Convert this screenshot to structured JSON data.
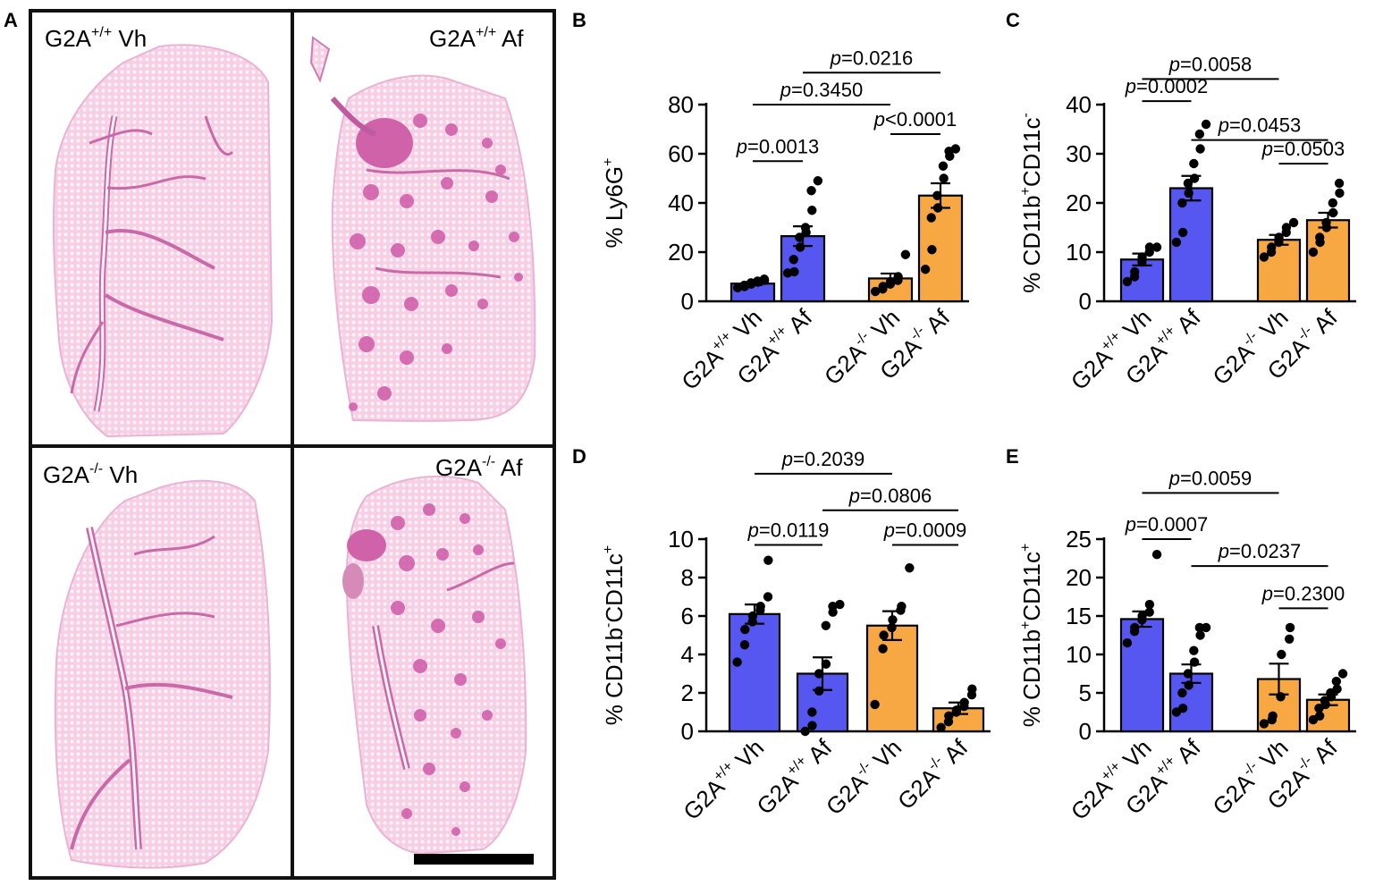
{
  "colors": {
    "blue": "#5656f0",
    "orange": "#f7a842",
    "tissue": "#f3c3df",
    "lesion": "#cf5aa8",
    "airway": "#ad3a8c"
  },
  "panel_a": {
    "letter": "A",
    "images": [
      {
        "base": "G2A",
        "sup": "+/+",
        "rest": " Vh"
      },
      {
        "base": "G2A",
        "sup": "+/+",
        "rest": " Af"
      },
      {
        "base": "G2A",
        "sup": "-/-",
        "rest": " Vh"
      },
      {
        "base": "G2A",
        "sup": "-/-",
        "rest": " Af"
      }
    ]
  },
  "chart_data": [
    {
      "panel": "B",
      "type": "bar",
      "ylabel_parts": [
        {
          "t": "% Ly6G"
        },
        {
          "t": "+",
          "s": "sup"
        }
      ],
      "ylim": [
        0,
        80
      ],
      "ticks": [
        0,
        20,
        40,
        60,
        80
      ],
      "categories": [
        {
          "base": "G2A",
          "sup": "+/+",
          "rest": " Vh"
        },
        {
          "base": "G2A",
          "sup": "+/+",
          "rest": " Af"
        },
        {
          "base": "G2A",
          "sup": "-/-",
          "rest": " Vh"
        },
        {
          "base": "G2A",
          "sup": "-/-",
          "rest": " Af"
        }
      ],
      "means": [
        7.2,
        26.5,
        9.3,
        43.0
      ],
      "sems": [
        0.6,
        4.0,
        2.0,
        5.0
      ],
      "points": [
        [
          5.5,
          6.0,
          6.5,
          7.0,
          7.5,
          7.8,
          8.2,
          8.5,
          9.0
        ],
        [
          11.5,
          12.0,
          17.0,
          22.0,
          26.0,
          28.0,
          30.0,
          37.0,
          45.0,
          49.0
        ],
        [
          4.0,
          5.0,
          6.0,
          7.0,
          8.0,
          8.5,
          10.0,
          19.0
        ],
        [
          13.0,
          21.0,
          34.0,
          38.0,
          43.0,
          50.0,
          55.0,
          59.0,
          61.0,
          62.0
        ]
      ],
      "comparisons": [
        {
          "pair": [
            0,
            1
          ],
          "y": 57,
          "label": "=0.0013"
        },
        {
          "pair": [
            2,
            3
          ],
          "y": 68,
          "label": "<0.0001"
        },
        {
          "pair": [
            0,
            2
          ],
          "y": 80,
          "label": "=0.3450"
        },
        {
          "pair": [
            1,
            3
          ],
          "y": 93,
          "label": "=0.0216"
        }
      ]
    },
    {
      "panel": "C",
      "type": "bar",
      "ylabel_parts": [
        {
          "t": "% CD11b"
        },
        {
          "t": "+",
          "s": "sup"
        },
        {
          "t": "CD11c"
        },
        {
          "t": "-",
          "s": "sup"
        }
      ],
      "ylim": [
        0,
        40
      ],
      "ticks": [
        0,
        10,
        20,
        30,
        40
      ],
      "categories": [
        {
          "base": "G2A",
          "sup": "+/+",
          "rest": " Vh"
        },
        {
          "base": "G2A",
          "sup": "+/+",
          "rest": " Af"
        },
        {
          "base": "G2A",
          "sup": "-/-",
          "rest": " Vh"
        },
        {
          "base": "G2A",
          "sup": "-/-",
          "rest": " Af"
        }
      ],
      "means": [
        8.5,
        23.0,
        12.5,
        16.5
      ],
      "sems": [
        1.2,
        2.5,
        1.0,
        1.5
      ],
      "points": [
        [
          4.0,
          5.0,
          6.0,
          8.0,
          9.0,
          10.0,
          11.0,
          11.0
        ],
        [
          12.0,
          14.0,
          20.0,
          22.0,
          24.0,
          25.0,
          28.0,
          31.0,
          34.0,
          36.0
        ],
        [
          9.0,
          10.0,
          11.0,
          12.0,
          13.0,
          14.0,
          15.0,
          16.0
        ],
        [
          10.0,
          12.0,
          13.0,
          15.0,
          16.0,
          18.0,
          20.0,
          22.0,
          24.0
        ]
      ],
      "comparisons": [
        {
          "pair": [
            2,
            3
          ],
          "y": 28,
          "label": "=0.0503"
        },
        {
          "pair": [
            1,
            3
          ],
          "y": 32.8,
          "label": "=0.0453"
        },
        {
          "pair": [
            0,
            1
          ],
          "y": 40.7,
          "label": "=0.0002"
        },
        {
          "pair": [
            0,
            2
          ],
          "y": 45.2,
          "label": "=0.0058"
        }
      ]
    },
    {
      "panel": "D",
      "type": "bar",
      "ylabel_parts": [
        {
          "t": "% CD11b"
        },
        {
          "t": "-",
          "s": "sup"
        },
        {
          "t": "CD11c"
        },
        {
          "t": "+",
          "s": "sup"
        }
      ],
      "ylim": [
        0,
        10
      ],
      "ticks": [
        0,
        2,
        4,
        6,
        8,
        10
      ],
      "categories": [
        {
          "base": "G2A",
          "sup": "+/+",
          "rest": " Vh"
        },
        {
          "base": "G2A",
          "sup": "+/+",
          "rest": " Af"
        },
        {
          "base": "G2A",
          "sup": "-/-",
          "rest": " Vh"
        },
        {
          "base": "G2A",
          "sup": "-/-",
          "rest": " Af"
        }
      ],
      "means": [
        6.1,
        3.0,
        5.5,
        1.2
      ],
      "sems": [
        0.5,
        0.85,
        0.75,
        0.3
      ],
      "points": [
        [
          3.6,
          4.5,
          5.3,
          5.7,
          6.0,
          6.3,
          6.5,
          7.0,
          8.9
        ],
        [
          0.0,
          0.3,
          1.0,
          2.1,
          3.0,
          3.5,
          5.5,
          6.2,
          6.5,
          6.6
        ],
        [
          1.4,
          4.3,
          5.0,
          5.4,
          5.8,
          6.3,
          6.5,
          8.5
        ],
        [
          0.2,
          0.5,
          0.8,
          1.0,
          1.1,
          1.3,
          1.5,
          1.9,
          2.2
        ]
      ],
      "comparisons": [
        {
          "pair": [
            0,
            1
          ],
          "y": 9.7,
          "label": "=0.0119"
        },
        {
          "pair": [
            2,
            3
          ],
          "y": 9.7,
          "label": "=0.0009"
        },
        {
          "pair": [
            1,
            3
          ],
          "y": 11.5,
          "label": "=0.0806"
        },
        {
          "pair": [
            0,
            2
          ],
          "y": 13.4,
          "label": "=0.2039"
        }
      ]
    },
    {
      "panel": "E",
      "type": "bar",
      "ylabel_parts": [
        {
          "t": "% CD11b"
        },
        {
          "t": "+",
          "s": "sup"
        },
        {
          "t": "CD11c"
        },
        {
          "t": "+",
          "s": "sup"
        }
      ],
      "ylim": [
        0,
        25
      ],
      "ticks": [
        0,
        5,
        10,
        15,
        20,
        25
      ],
      "categories": [
        {
          "base": "G2A",
          "sup": "+/+",
          "rest": " Vh"
        },
        {
          "base": "G2A",
          "sup": "+/+",
          "rest": " Af"
        },
        {
          "base": "G2A",
          "sup": "-/-",
          "rest": " Vh"
        },
        {
          "base": "G2A",
          "sup": "-/-",
          "rest": " Af"
        }
      ],
      "means": [
        14.6,
        7.5,
        6.8,
        4.1
      ],
      "sems": [
        1.0,
        1.2,
        2.0,
        0.7
      ],
      "points": [
        [
          11.5,
          13.0,
          13.5,
          14.5,
          15.0,
          15.5,
          16.5,
          23.0
        ],
        [
          2.5,
          3.0,
          5.0,
          6.0,
          7.5,
          9.0,
          10.5,
          12.5,
          13.5,
          13.5
        ],
        [
          1.0,
          1.5,
          2.0,
          4.5,
          10.0,
          12.0,
          13.5
        ],
        [
          1.5,
          2.0,
          3.0,
          3.5,
          4.0,
          4.5,
          5.0,
          5.5,
          6.5,
          7.5
        ]
      ],
      "comparisons": [
        {
          "pair": [
            2,
            3
          ],
          "y": 16,
          "label": "=0.2300"
        },
        {
          "pair": [
            1,
            3
          ],
          "y": 21.5,
          "label": "=0.0237"
        },
        {
          "pair": [
            0,
            1
          ],
          "y": 25,
          "label": "=0.0007"
        },
        {
          "pair": [
            0,
            2
          ],
          "y": 31,
          "label": "=0.0059"
        }
      ]
    }
  ]
}
